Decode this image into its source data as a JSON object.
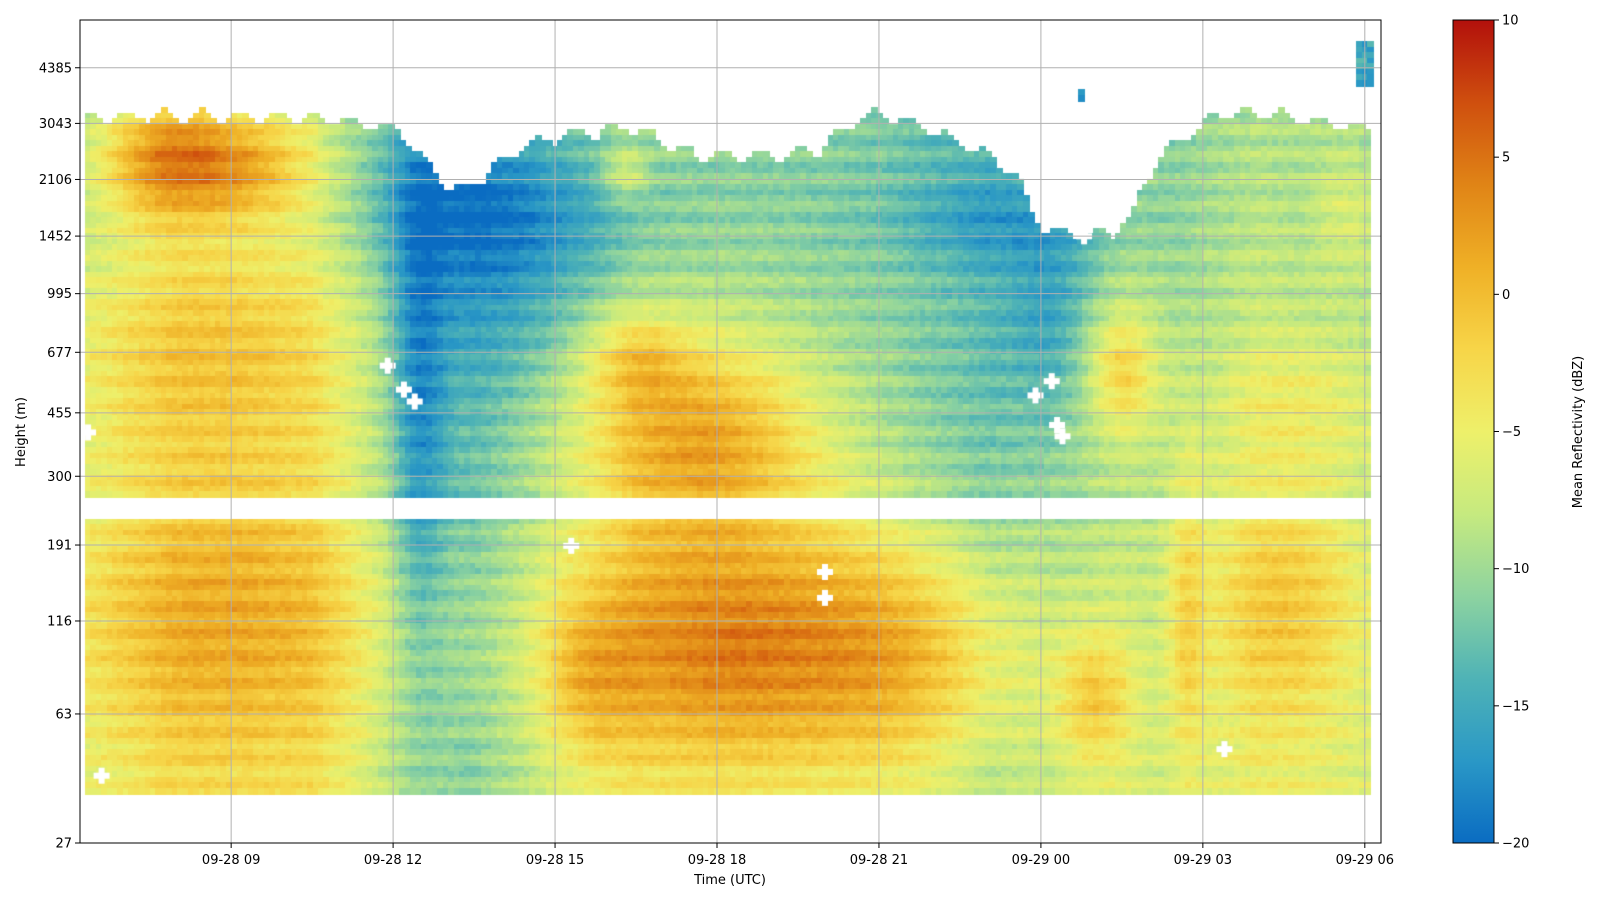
{
  "chart_data": {
    "type": "heatmap",
    "title": "",
    "xlabel": "Time (UTC)",
    "ylabel": "Height (m)",
    "x_ticks": [
      "09-28 09",
      "09-28 12",
      "09-28 15",
      "09-28 18",
      "09-28 21",
      "09-29 00",
      "09-29 03",
      "09-29 06"
    ],
    "y_ticks": [
      "27",
      "63",
      "116",
      "191",
      "300",
      "455",
      "677",
      "995",
      "1452",
      "2106",
      "3043",
      "4385"
    ],
    "colorbar": {
      "label": "Mean Reflectivity (dBZ)",
      "min": -20,
      "max": 10,
      "ticks": [
        "10",
        "5",
        "0",
        "−5",
        "−10",
        "−15",
        "−20"
      ],
      "colormap": "RdYlBu_r",
      "stops": [
        "#0a6cc2",
        "#2a98c6",
        "#4fb3b6",
        "#8dd3a0",
        "#c6ea7f",
        "#eef06a",
        "#f7d548",
        "#efb026",
        "#e08416",
        "#cf4f0e",
        "#b2100c"
      ]
    },
    "time_range_hours": [
      6.2,
      30.3
    ],
    "x_tick_hours": [
      9,
      12,
      15,
      18,
      21,
      24,
      27,
      30
    ],
    "height_range_m": [
      27,
      6000
    ],
    "y_scale": "log",
    "grid": true,
    "gap_band_m": [
      225,
      260
    ],
    "data_extent": {
      "hour_start": 6.3,
      "hour_end": 30.1,
      "height_bottom_m": 37
    },
    "cloud_top_m": [
      [
        6.3,
        3150
      ],
      [
        7.5,
        3200
      ],
      [
        9.0,
        3180
      ],
      [
        10.2,
        3150
      ],
      [
        11.0,
        3110
      ],
      [
        11.6,
        3000
      ],
      [
        12.1,
        2900
      ],
      [
        12.6,
        2350
      ],
      [
        12.9,
        2050
      ],
      [
        13.3,
        1980
      ],
      [
        13.8,
        2200
      ],
      [
        14.4,
        2600
      ],
      [
        15.2,
        2800
      ],
      [
        15.8,
        2850
      ],
      [
        16.3,
        2950
      ],
      [
        17.0,
        2700
      ],
      [
        17.6,
        2450
      ],
      [
        18.4,
        2450
      ],
      [
        19.2,
        2480
      ],
      [
        19.9,
        2550
      ],
      [
        20.5,
        3050
      ],
      [
        21.0,
        3250
      ],
      [
        21.6,
        3050
      ],
      [
        22.3,
        2750
      ],
      [
        23.0,
        2450
      ],
      [
        23.5,
        2200
      ],
      [
        23.8,
        1700
      ],
      [
        24.1,
        1500
      ],
      [
        24.8,
        1450
      ],
      [
        25.4,
        1500
      ],
      [
        25.7,
        1650
      ],
      [
        25.9,
        2050
      ],
      [
        26.3,
        2550
      ],
      [
        26.8,
        2850
      ],
      [
        27.3,
        3250
      ],
      [
        28.5,
        3200
      ],
      [
        29.5,
        3000
      ],
      [
        30.1,
        2900
      ]
    ],
    "background_dbz": [
      [
        6.3,
        -10
      ],
      [
        8.0,
        -8
      ],
      [
        10.5,
        -8
      ],
      [
        11.5,
        -11
      ],
      [
        12.4,
        -14
      ],
      [
        13.5,
        -15
      ],
      [
        15.0,
        -12
      ],
      [
        16.5,
        -10
      ],
      [
        19.0,
        -11
      ],
      [
        21.0,
        -12
      ],
      [
        23.0,
        -14
      ],
      [
        24.2,
        -12
      ],
      [
        25.5,
        -10
      ],
      [
        26.5,
        -11
      ],
      [
        28.0,
        -9
      ],
      [
        30.1,
        -10
      ]
    ],
    "features": [
      {
        "t": 7.8,
        "h": 2400,
        "st": 0.9,
        "sh": 0.28,
        "a": 11
      },
      {
        "t": 9.4,
        "h": 2300,
        "st": 0.9,
        "sh": 0.25,
        "a": 7
      },
      {
        "t": 8.5,
        "h": 700,
        "st": 2.2,
        "sh": 0.55,
        "a": 6
      },
      {
        "t": 8.8,
        "h": 120,
        "st": 2.4,
        "sh": 0.7,
        "a": 7
      },
      {
        "t": 14.3,
        "h": 1700,
        "st": 2.0,
        "sh": 0.3,
        "a": -4
      },
      {
        "t": 23.2,
        "h": 1600,
        "st": 1.5,
        "sh": 0.2,
        "a": -3
      },
      {
        "t": 16.3,
        "h": 2200,
        "st": 0.3,
        "sh": 0.12,
        "a": 5
      },
      {
        "t": 17.7,
        "h": 400,
        "st": 1.6,
        "sh": 0.45,
        "a": 10
      },
      {
        "t": 16.5,
        "h": 650,
        "st": 0.7,
        "sh": 0.2,
        "a": 5
      },
      {
        "t": 18.2,
        "h": 100,
        "st": 2.3,
        "sh": 0.6,
        "a": 12
      },
      {
        "t": 15.6,
        "h": 80,
        "st": 0.6,
        "sh": 0.4,
        "a": 4
      },
      {
        "t": 21.8,
        "h": 90,
        "st": 1.6,
        "sh": 0.6,
        "a": 7
      },
      {
        "t": 25.0,
        "h": 70,
        "st": 0.5,
        "sh": 0.3,
        "a": 6
      },
      {
        "t": 25.5,
        "h": 600,
        "st": 0.5,
        "sh": 0.3,
        "a": 7
      },
      {
        "t": 26.7,
        "h": 120,
        "st": 0.25,
        "sh": 0.8,
        "a": 5
      },
      {
        "t": 28.5,
        "h": 130,
        "st": 1.1,
        "sh": 0.6,
        "a": 6
      },
      {
        "t": 28.8,
        "h": 500,
        "st": 1.2,
        "sh": 0.3,
        "a": 3
      },
      {
        "t": 12.5,
        "h": 500,
        "st": 0.35,
        "sh": 1.2,
        "a": -6
      },
      {
        "t": 14.2,
        "h": 1100,
        "st": 1.3,
        "sh": 0.5,
        "a": -3
      },
      {
        "t": 29.7,
        "h": 1700,
        "st": 0.4,
        "sh": 0.3,
        "a": 3
      },
      {
        "t": 24.2,
        "h": 900,
        "st": 0.6,
        "sh": 0.5,
        "a": -4
      }
    ],
    "isolated_echoes": [
      {
        "t0": 29.85,
        "t1": 30.15,
        "h0": 3900,
        "h1": 5200,
        "dbz": -15
      },
      {
        "t0": 24.7,
        "t1": 24.8,
        "h0": 3600,
        "h1": 3800,
        "dbz": -17
      }
    ],
    "missing_points": [
      [
        6.35,
        400
      ],
      [
        11.9,
        620
      ],
      [
        12.2,
        530
      ],
      [
        12.4,
        490
      ],
      [
        23.9,
        510
      ],
      [
        24.2,
        560
      ],
      [
        24.3,
        420
      ],
      [
        24.4,
        390
      ],
      [
        24.8,
        1450
      ],
      [
        15.3,
        190
      ],
      [
        20.0,
        160
      ],
      [
        20.0,
        135
      ],
      [
        27.4,
        50
      ],
      [
        6.6,
        42
      ]
    ]
  }
}
